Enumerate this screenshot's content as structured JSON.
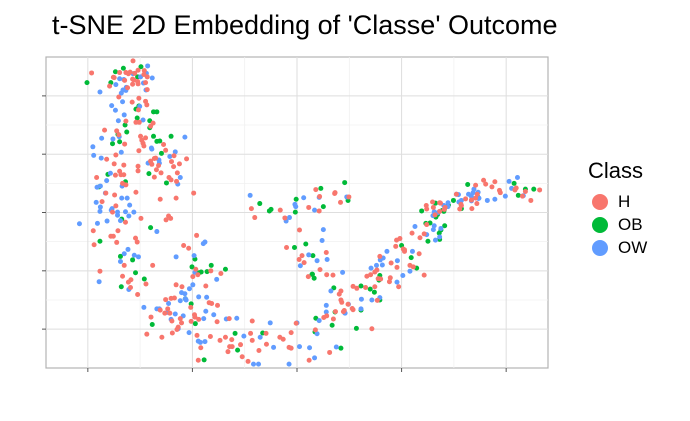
{
  "chart_data": {
    "type": "scatter",
    "title": "t-SNE 2D Embedding of 'Classe' Outcome",
    "xlabel": "",
    "ylabel": "",
    "tick_labels_visible": false,
    "xlim": [
      -60,
      60
    ],
    "ylim": [
      -40,
      40
    ],
    "grid": true,
    "legend": {
      "title": "Class",
      "placement": "right"
    },
    "series": [
      {
        "name": "H",
        "color": "#F8766D",
        "points": []
      },
      {
        "name": "OB",
        "color": "#00BA38",
        "points": []
      },
      {
        "name": "OW",
        "color": "#619CFF",
        "points": []
      }
    ]
  }
}
